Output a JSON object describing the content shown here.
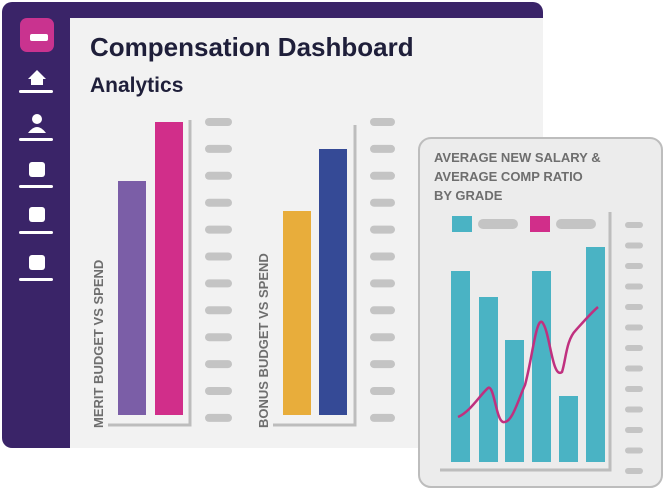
{
  "header": {
    "title": "Compensation Dashboard",
    "subtitle": "Analytics"
  },
  "panels": [
    {
      "label": "MERIT BUDGET VS SPEND"
    },
    {
      "label": "BONUS BUDGET VS SPEND"
    }
  ],
  "card": {
    "title_lines": [
      "AVERAGE NEW SALARY &",
      "AVERAGE COMP RATIO",
      "BY GRADE"
    ]
  }
}
